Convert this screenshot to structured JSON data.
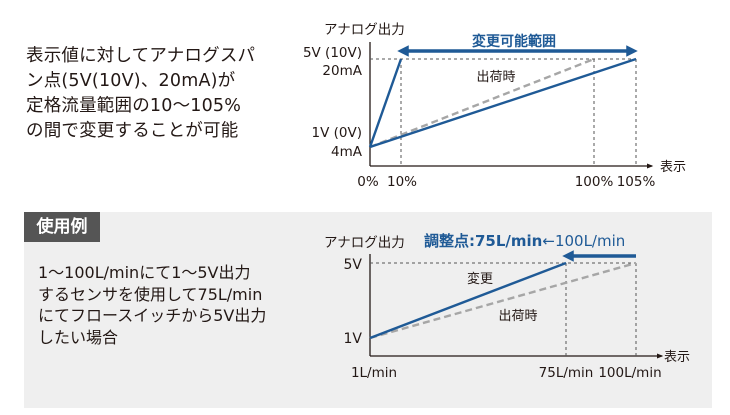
{
  "top": {
    "description": [
      "表示値に対してアナログスパ",
      "ン点(5V(10V)、20mA)が",
      "定格流量範囲の10〜105%",
      "の間で変更することが可能"
    ],
    "y_axis_title": "アナログ出力",
    "y_label_high_1": "5V (10V)",
    "y_label_high_2": "20mA",
    "y_label_low_1": "1V (0V)",
    "y_label_low_2": "4mA",
    "x_ticks": [
      "0%",
      "10%",
      "100%",
      "105%"
    ],
    "x_axis_title": "表示",
    "range_label": "変更可能範囲",
    "factory_label": "出荷時"
  },
  "example": {
    "tag": "使用例",
    "description": [
      "1〜100L/minにて1〜5V出力",
      "するセンサを使用して75L/min",
      "にてフロースイッチから5V出力",
      "したい場合"
    ],
    "y_axis_title": "アナログ出力",
    "y_label_high": "5V",
    "y_label_low": "1V",
    "x_ticks": [
      "1L/min",
      "75L/min",
      "100L/min"
    ],
    "x_axis_title": "表示",
    "adjust_label_bold": "調整点:75L/min",
    "adjust_label_rest": "←100L/min",
    "changed_label": "変更",
    "factory_label": "出荷時"
  },
  "colors": {
    "accent": "#1f5a96",
    "dashed_line": "#a6a6a6",
    "panel": "#efefef",
    "tag": "#555555",
    "text": "#231815"
  }
}
